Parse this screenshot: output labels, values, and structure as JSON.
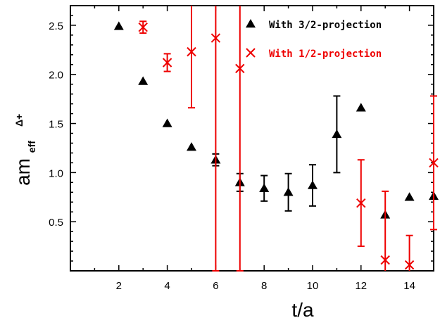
{
  "chart_data": {
    "type": "scatter",
    "xlabel": "t/a",
    "ylabel_main": "am",
    "ylabel_sub": "eff",
    "ylabel_sup": "Δ+",
    "xlim": [
      0,
      15
    ],
    "ylim": [
      0,
      2.7
    ],
    "xticks": [
      2,
      4,
      6,
      8,
      10,
      12,
      14
    ],
    "yticks": [
      0.5,
      1.0,
      1.5,
      2.0,
      2.5
    ],
    "yticklabels": [
      "0.5",
      "1.0",
      "1.5",
      "2.0",
      "2.5"
    ],
    "grid": false,
    "legend_position": "top-right",
    "series": [
      {
        "name": "With 3/2-projection",
        "marker": "triangle",
        "color": "#000000",
        "points": [
          {
            "x": 2,
            "y": 2.49,
            "err": 0
          },
          {
            "x": 3,
            "y": 1.93,
            "err": 0
          },
          {
            "x": 4,
            "y": 1.5,
            "err": 0
          },
          {
            "x": 5,
            "y": 1.26,
            "err": 0
          },
          {
            "x": 6,
            "y": 1.13,
            "err": 0.06
          },
          {
            "x": 7,
            "y": 0.9,
            "err": 0.09
          },
          {
            "x": 8,
            "y": 0.84,
            "err": 0.13
          },
          {
            "x": 9,
            "y": 0.8,
            "err": 0.19
          },
          {
            "x": 10,
            "y": 0.87,
            "err": 0.21
          },
          {
            "x": 11,
            "y": 1.39,
            "err": 0.39
          },
          {
            "x": 12,
            "y": 1.66,
            "err": 0
          },
          {
            "x": 13,
            "y": 0.57,
            "err": 0
          },
          {
            "x": 14,
            "y": 0.75,
            "err": 0
          },
          {
            "x": 15,
            "y": 0.76,
            "err": 0
          }
        ]
      },
      {
        "name": "With 1/2-projection",
        "marker": "x",
        "color": "#ee0000",
        "points": [
          {
            "x": 3,
            "y": 2.48,
            "err": 0.06
          },
          {
            "x": 4,
            "y": 2.12,
            "err": 0.09
          },
          {
            "x": 5,
            "y": 2.23,
            "err": 0.57
          },
          {
            "x": 6,
            "y": 2.37,
            "err": 2.37
          },
          {
            "x": 7,
            "y": 2.06,
            "err": 2.06
          },
          {
            "x": 12,
            "y": 0.69,
            "err": 0.44
          },
          {
            "x": 13,
            "y": 0.11,
            "err": 0.7
          },
          {
            "x": 14,
            "y": 0.06,
            "err": 0.3
          },
          {
            "x": 15,
            "y": 1.1,
            "err": 0.68
          }
        ]
      }
    ]
  }
}
